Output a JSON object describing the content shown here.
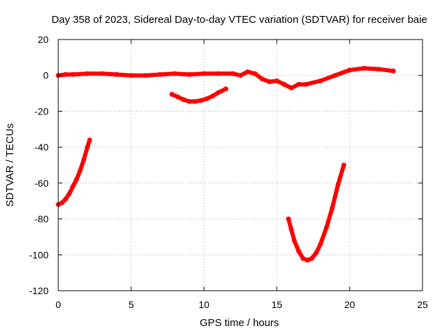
{
  "chart_data": {
    "type": "scatter",
    "title": "Day 358 of 2023, Sidereal Day-to-day VTEC variation (SDTVAR) for receiver baie",
    "xlabel": "GPS time / hours",
    "ylabel": "SDTVAR / TECUs",
    "xlim": [
      0,
      25
    ],
    "ylim": [
      -120,
      20
    ],
    "x_ticks": [
      0,
      5,
      10,
      15,
      20,
      25
    ],
    "y_ticks": [
      -120,
      -100,
      -80,
      -60,
      -40,
      -20,
      0,
      20
    ],
    "x_tick_labels": [
      "0",
      "5",
      "10",
      "15",
      "20",
      "25"
    ],
    "y_tick_labels": [
      "-120",
      "-100",
      "-80",
      "-60",
      "-40",
      "-20",
      "0",
      "20"
    ],
    "grid": true,
    "legend": false,
    "color": "#ff0000",
    "series": [
      {
        "name": "main-trace",
        "x": [
          0,
          0.5,
          1,
          2,
          3,
          4,
          5,
          6,
          7,
          8,
          9,
          10,
          11,
          12,
          12.5,
          13,
          13.5,
          14,
          14.5,
          15,
          15.5,
          16,
          16.5,
          17,
          18,
          19,
          20,
          21,
          22,
          23
        ],
        "y": [
          0,
          0.5,
          0.5,
          1,
          1,
          0.5,
          0,
          0,
          0.5,
          1,
          0.5,
          1,
          1,
          1,
          0,
          2,
          1,
          -2,
          -3.5,
          -3,
          -5,
          -7,
          -5,
          -5,
          -3,
          0,
          3,
          4,
          3.5,
          2.5
        ]
      },
      {
        "name": "arc-1",
        "x": [
          0,
          0.25,
          0.5,
          0.75,
          1,
          1.25,
          1.5,
          1.75,
          2,
          2.15
        ],
        "y": [
          -72,
          -71,
          -69,
          -66,
          -62,
          -58,
          -53,
          -47,
          -40,
          -36
        ]
      },
      {
        "name": "arc-2",
        "x": [
          7.8,
          8.2,
          8.6,
          9,
          9.4,
          9.8,
          10.2,
          10.6,
          11,
          11.5
        ],
        "y": [
          -10.5,
          -12,
          -13.5,
          -14.5,
          -14.5,
          -14,
          -13,
          -11.5,
          -9.5,
          -7.5
        ]
      },
      {
        "name": "arc-3",
        "x": [
          15.8,
          16,
          16.2,
          16.5,
          16.8,
          17.1,
          17.4,
          17.7,
          18,
          18.4,
          18.8,
          19.2,
          19.6
        ],
        "y": [
          -80,
          -86,
          -92,
          -98,
          -102,
          -103,
          -102,
          -99,
          -94,
          -85,
          -74,
          -61,
          -50
        ]
      }
    ]
  }
}
